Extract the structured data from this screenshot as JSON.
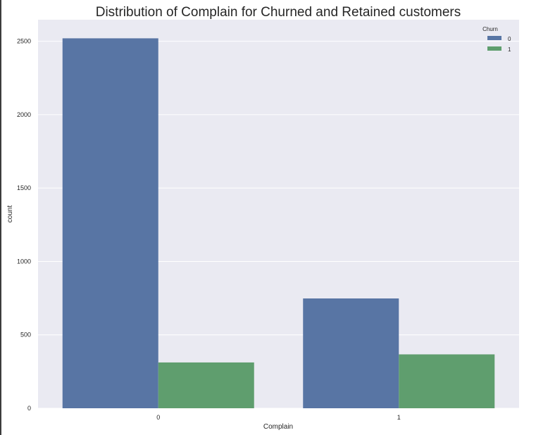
{
  "chart_data": {
    "type": "bar",
    "title": "Distribution of Complain for Churned and Retained customers",
    "xlabel": "Complain",
    "ylabel": "count",
    "categories": [
      "0",
      "1"
    ],
    "series": [
      {
        "name": "0",
        "values": [
          2520,
          748
        ]
      },
      {
        "name": "1",
        "values": [
          312,
          367
        ]
      }
    ],
    "ylim": [
      0,
      2600
    ],
    "yticks": [
      0,
      500,
      1000,
      1500,
      2000,
      2500
    ],
    "grid": true,
    "legend": {
      "title": "Churn",
      "placement": "top-right"
    },
    "colors": {
      "series": [
        "#5875a4",
        "#5f9e6e"
      ],
      "background": "#eaeaf2",
      "grid": "#ffffff"
    }
  }
}
